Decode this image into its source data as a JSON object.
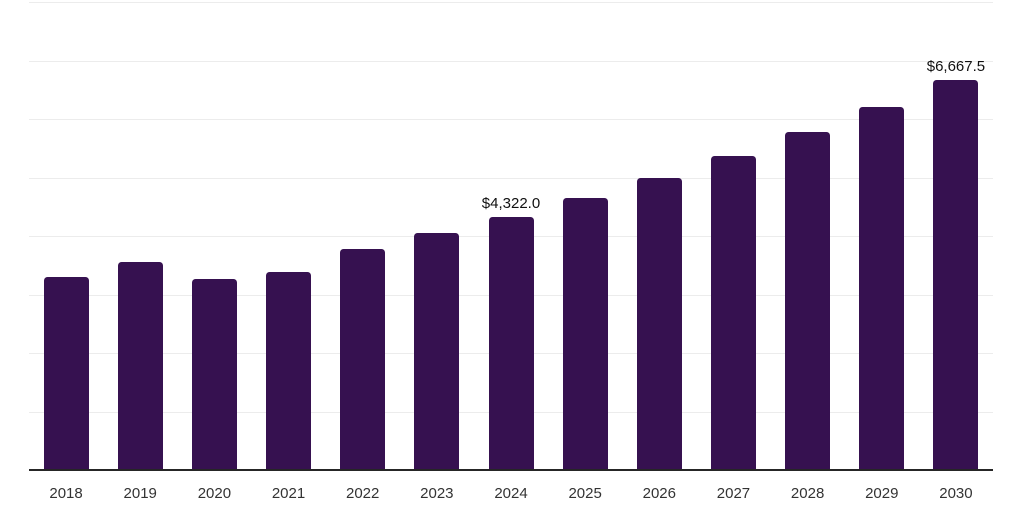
{
  "chart_data": {
    "type": "bar",
    "title": "",
    "xlabel": "",
    "ylabel": "",
    "categories": [
      "2018",
      "2019",
      "2020",
      "2021",
      "2022",
      "2023",
      "2024",
      "2025",
      "2026",
      "2027",
      "2028",
      "2029",
      "2030"
    ],
    "values": [
      3300,
      3550,
      3260,
      3380,
      3780,
      4050,
      4322.0,
      4650,
      4990,
      5370,
      5770,
      6200,
      6667.5
    ],
    "point_labels": [
      "",
      "",
      "",
      "",
      "",
      "",
      "$4,322.0",
      "",
      "",
      "",
      "",
      "",
      "$6,667.5"
    ],
    "ylim": [
      0,
      8000
    ],
    "grid_interval": 1000,
    "grid": true,
    "y_axis_tick_labels_visible": false,
    "legend": null,
    "colors": {
      "bar": "#361150",
      "gridline": "#ececec",
      "axis_line": "#262626",
      "point_label_text": "#111111",
      "tick_label_text": "#333333",
      "background": "#ffffff"
    }
  }
}
